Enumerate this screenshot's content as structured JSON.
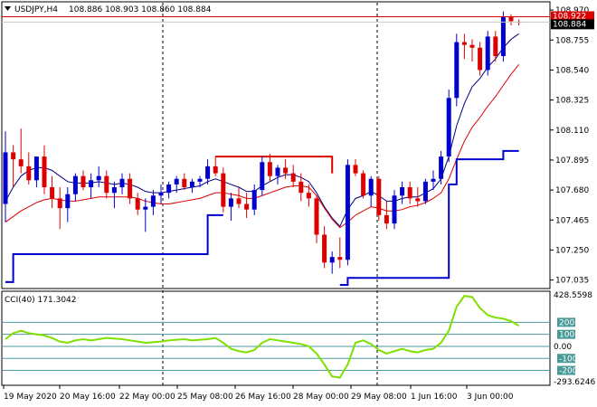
{
  "header": {
    "menu_icon": "triangle-down-icon",
    "symbol": "USDJPY,H4",
    "ohlc": "108.886 108.903 108.860 108.884"
  },
  "price_axis": {
    "ticks": [
      "108.970",
      "108.755",
      "108.540",
      "108.325",
      "108.110",
      "107.895",
      "107.680",
      "107.465",
      "107.250",
      "107.035"
    ],
    "bid_label": "108.884",
    "ask_label": "108.922"
  },
  "indicator": {
    "title": "CCI(40) 171.3042",
    "ticks": [
      "428.5598",
      "200",
      "100",
      "0.00",
      "-100",
      "-200",
      "-293.6246"
    ]
  },
  "time_axis": {
    "labels": [
      "19 May 2020",
      "20 May 16:00",
      "22 May 00:00",
      "25 May 08:00",
      "26 May 16:00",
      "28 May 00:00",
      "29 May 08:00",
      "1 Jun 16:00",
      "3 Jun 00:00"
    ]
  },
  "colors": {
    "bull": "#0000cd",
    "bear": "#dd0000",
    "ma_fast": "#000080",
    "ma_slow": "#dd0000",
    "support": "#0000cd",
    "resistance": "#dd0000",
    "cci": "#7fe000",
    "level_lines": "#4a9a9a",
    "bid_line": "#c8c8c8",
    "ask_line": "#dd0000"
  },
  "chart_data": {
    "type": "candlestick",
    "timeframe": "H4",
    "ylim": [
      107.0,
      108.99
    ],
    "candles": [
      {
        "o": 107.58,
        "h": 108.1,
        "l": 107.45,
        "c": 107.95
      },
      {
        "o": 107.95,
        "h": 108.0,
        "l": 107.7,
        "c": 107.9
      },
      {
        "o": 107.9,
        "h": 108.12,
        "l": 107.8,
        "c": 107.85
      },
      {
        "o": 107.85,
        "h": 107.95,
        "l": 107.72,
        "c": 107.75
      },
      {
        "o": 107.75,
        "h": 107.92,
        "l": 107.7,
        "c": 107.92
      },
      {
        "o": 107.92,
        "h": 108.0,
        "l": 107.65,
        "c": 107.7
      },
      {
        "o": 107.7,
        "h": 107.78,
        "l": 107.55,
        "c": 107.62
      },
      {
        "o": 107.62,
        "h": 107.7,
        "l": 107.4,
        "c": 107.55
      },
      {
        "o": 107.55,
        "h": 107.7,
        "l": 107.45,
        "c": 107.65
      },
      {
        "o": 107.65,
        "h": 107.8,
        "l": 107.6,
        "c": 107.78
      },
      {
        "o": 107.78,
        "h": 107.82,
        "l": 107.68,
        "c": 107.7
      },
      {
        "o": 107.7,
        "h": 107.8,
        "l": 107.62,
        "c": 107.75
      },
      {
        "o": 107.75,
        "h": 107.85,
        "l": 107.7,
        "c": 107.78
      },
      {
        "o": 107.78,
        "h": 107.82,
        "l": 107.62,
        "c": 107.66
      },
      {
        "o": 107.66,
        "h": 107.74,
        "l": 107.55,
        "c": 107.7
      },
      {
        "o": 107.7,
        "h": 107.8,
        "l": 107.65,
        "c": 107.76
      },
      {
        "o": 107.76,
        "h": 107.8,
        "l": 107.58,
        "c": 107.62
      },
      {
        "o": 107.62,
        "h": 107.66,
        "l": 107.5,
        "c": 107.54
      },
      {
        "o": 107.54,
        "h": 107.62,
        "l": 107.38,
        "c": 107.56
      },
      {
        "o": 107.56,
        "h": 107.68,
        "l": 107.5,
        "c": 107.64
      },
      {
        "o": 107.64,
        "h": 107.72,
        "l": 107.58,
        "c": 107.66
      },
      {
        "o": 107.66,
        "h": 107.74,
        "l": 107.62,
        "c": 107.72
      },
      {
        "o": 107.72,
        "h": 107.78,
        "l": 107.66,
        "c": 107.76
      },
      {
        "o": 107.76,
        "h": 107.8,
        "l": 107.68,
        "c": 107.7
      },
      {
        "o": 107.7,
        "h": 107.76,
        "l": 107.66,
        "c": 107.74
      },
      {
        "o": 107.74,
        "h": 107.78,
        "l": 107.7,
        "c": 107.76
      },
      {
        "o": 107.76,
        "h": 107.9,
        "l": 107.72,
        "c": 107.85
      },
      {
        "o": 107.85,
        "h": 107.92,
        "l": 107.78,
        "c": 107.8
      },
      {
        "o": 107.8,
        "h": 107.84,
        "l": 107.52,
        "c": 107.56
      },
      {
        "o": 107.56,
        "h": 107.66,
        "l": 107.46,
        "c": 107.62
      },
      {
        "o": 107.62,
        "h": 107.7,
        "l": 107.55,
        "c": 107.58
      },
      {
        "o": 107.58,
        "h": 107.66,
        "l": 107.48,
        "c": 107.54
      },
      {
        "o": 107.54,
        "h": 107.72,
        "l": 107.5,
        "c": 107.68
      },
      {
        "o": 107.68,
        "h": 107.92,
        "l": 107.64,
        "c": 107.88
      },
      {
        "o": 107.88,
        "h": 107.94,
        "l": 107.74,
        "c": 107.78
      },
      {
        "o": 107.78,
        "h": 107.86,
        "l": 107.72,
        "c": 107.84
      },
      {
        "o": 107.84,
        "h": 107.9,
        "l": 107.76,
        "c": 107.8
      },
      {
        "o": 107.8,
        "h": 107.86,
        "l": 107.7,
        "c": 107.74
      },
      {
        "o": 107.74,
        "h": 107.8,
        "l": 107.6,
        "c": 107.66
      },
      {
        "o": 107.66,
        "h": 107.72,
        "l": 107.56,
        "c": 107.62
      },
      {
        "o": 107.62,
        "h": 107.64,
        "l": 107.3,
        "c": 107.36
      },
      {
        "o": 107.36,
        "h": 107.42,
        "l": 107.12,
        "c": 107.16
      },
      {
        "o": 107.16,
        "h": 107.24,
        "l": 107.08,
        "c": 107.2
      },
      {
        "o": 107.2,
        "h": 107.34,
        "l": 107.12,
        "c": 107.18
      },
      {
        "o": 107.18,
        "h": 107.9,
        "l": 107.14,
        "c": 107.86
      },
      {
        "o": 107.86,
        "h": 107.9,
        "l": 107.78,
        "c": 107.8
      },
      {
        "o": 107.8,
        "h": 107.82,
        "l": 107.62,
        "c": 107.64
      },
      {
        "o": 107.64,
        "h": 107.78,
        "l": 107.56,
        "c": 107.76
      },
      {
        "o": 107.76,
        "h": 107.78,
        "l": 107.46,
        "c": 107.5
      },
      {
        "o": 107.5,
        "h": 107.6,
        "l": 107.4,
        "c": 107.44
      },
      {
        "o": 107.44,
        "h": 107.68,
        "l": 107.4,
        "c": 107.64
      },
      {
        "o": 107.64,
        "h": 107.74,
        "l": 107.58,
        "c": 107.7
      },
      {
        "o": 107.7,
        "h": 107.74,
        "l": 107.58,
        "c": 107.62
      },
      {
        "o": 107.62,
        "h": 107.7,
        "l": 107.56,
        "c": 107.6
      },
      {
        "o": 107.6,
        "h": 107.76,
        "l": 107.58,
        "c": 107.74
      },
      {
        "o": 107.74,
        "h": 107.82,
        "l": 107.68,
        "c": 107.76
      },
      {
        "o": 107.76,
        "h": 107.96,
        "l": 107.72,
        "c": 107.92
      },
      {
        "o": 107.92,
        "h": 108.4,
        "l": 107.88,
        "c": 108.34
      },
      {
        "o": 108.34,
        "h": 108.8,
        "l": 108.28,
        "c": 108.74
      },
      {
        "o": 108.74,
        "h": 108.8,
        "l": 108.62,
        "c": 108.72
      },
      {
        "o": 108.72,
        "h": 108.76,
        "l": 108.6,
        "c": 108.7
      },
      {
        "o": 108.7,
        "h": 108.74,
        "l": 108.5,
        "c": 108.54
      },
      {
        "o": 108.54,
        "h": 108.82,
        "l": 108.5,
        "c": 108.78
      },
      {
        "o": 108.78,
        "h": 108.82,
        "l": 108.6,
        "c": 108.64
      },
      {
        "o": 108.64,
        "h": 108.96,
        "l": 108.6,
        "c": 108.92
      },
      {
        "o": 108.92,
        "h": 108.94,
        "l": 108.86,
        "c": 108.89
      },
      {
        "o": 108.886,
        "h": 108.903,
        "l": 108.86,
        "c": 108.884
      }
    ],
    "overlays": [
      {
        "name": "fast moving average",
        "values": [
          107.6,
          107.7,
          107.78,
          107.82,
          107.84,
          107.84,
          107.82,
          107.78,
          107.74,
          107.73,
          107.73,
          107.73,
          107.74,
          107.73,
          107.72,
          107.73,
          107.72,
          107.7,
          107.67,
          107.66,
          107.66,
          107.67,
          107.68,
          107.69,
          107.7,
          107.71,
          107.74,
          107.76,
          107.74,
          107.72,
          107.7,
          107.67,
          107.67,
          107.71,
          107.74,
          107.77,
          107.79,
          107.79,
          107.77,
          107.74,
          107.66,
          107.56,
          107.48,
          107.42,
          107.54,
          107.62,
          107.64,
          107.67,
          107.64,
          107.6,
          107.6,
          107.62,
          107.63,
          107.63,
          107.66,
          107.69,
          107.76,
          107.92,
          108.14,
          108.3,
          108.42,
          108.48,
          108.56,
          108.62,
          108.7,
          108.76,
          108.8
        ]
      },
      {
        "name": "slow moving average",
        "values": [
          107.45,
          107.49,
          107.53,
          107.56,
          107.59,
          107.61,
          107.62,
          107.61,
          107.6,
          107.6,
          107.61,
          107.62,
          107.63,
          107.63,
          107.63,
          107.63,
          107.63,
          107.62,
          107.6,
          107.59,
          107.58,
          107.58,
          107.59,
          107.6,
          107.61,
          107.62,
          107.64,
          107.66,
          107.66,
          107.65,
          107.64,
          107.62,
          107.62,
          107.64,
          107.66,
          107.68,
          107.7,
          107.71,
          107.71,
          107.7,
          107.64,
          107.55,
          107.47,
          107.41,
          107.45,
          107.5,
          107.53,
          107.56,
          107.55,
          107.53,
          107.53,
          107.54,
          107.56,
          107.57,
          107.59,
          107.62,
          107.66,
          107.76,
          107.9,
          108.03,
          108.13,
          108.2,
          108.28,
          108.35,
          108.43,
          108.51,
          108.58
        ]
      },
      {
        "name": "support line",
        "values": [
          107.02,
          107.22,
          107.22,
          107.22,
          107.22,
          107.22,
          107.22,
          107.22,
          107.22,
          107.22,
          107.22,
          107.22,
          107.22,
          107.22,
          107.22,
          107.22,
          107.22,
          107.22,
          107.22,
          107.22,
          107.22,
          107.22,
          107.22,
          107.22,
          107.22,
          107.22,
          107.5,
          107.5,
          107.5,
          null,
          null,
          null,
          null,
          null,
          null,
          null,
          null,
          null,
          null,
          null,
          null,
          null,
          null,
          107.0,
          107.05,
          107.05,
          107.05,
          107.05,
          107.05,
          107.05,
          107.05,
          107.05,
          107.05,
          107.05,
          107.05,
          107.05,
          107.05,
          107.72,
          107.9,
          107.9,
          107.9,
          107.9,
          107.9,
          107.9,
          107.96,
          107.96,
          107.96
        ]
      },
      {
        "name": "resistance line",
        "values": [
          null,
          null,
          null,
          null,
          null,
          null,
          null,
          null,
          null,
          null,
          null,
          null,
          null,
          null,
          null,
          null,
          null,
          null,
          null,
          null,
          null,
          null,
          null,
          null,
          null,
          null,
          null,
          107.92,
          107.92,
          107.92,
          107.92,
          107.92,
          107.92,
          107.92,
          107.92,
          107.92,
          107.92,
          107.92,
          107.92,
          107.92,
          107.92,
          107.92,
          107.8,
          null,
          null,
          null,
          null,
          null,
          null,
          null,
          null,
          null,
          null,
          null,
          null,
          null,
          null,
          null,
          null,
          null,
          null,
          null,
          null,
          null,
          null,
          null,
          null
        ]
      }
    ],
    "cci": {
      "name": "CCI(40)",
      "ylim": [
        -293.6246,
        428.5598
      ],
      "levels": [
        200,
        100,
        0,
        -100,
        -200
      ],
      "values": [
        60,
        110,
        130,
        110,
        100,
        90,
        70,
        40,
        30,
        50,
        60,
        50,
        60,
        70,
        65,
        60,
        50,
        40,
        30,
        35,
        40,
        50,
        55,
        60,
        50,
        55,
        60,
        70,
        30,
        -20,
        -40,
        -50,
        -30,
        30,
        60,
        50,
        40,
        30,
        20,
        0,
        -60,
        -150,
        -250,
        -260,
        -150,
        30,
        50,
        20,
        -30,
        -60,
        -40,
        -20,
        -40,
        -50,
        -30,
        -20,
        30,
        130,
        330,
        420,
        410,
        320,
        260,
        240,
        230,
        210,
        171.3042
      ]
    }
  }
}
